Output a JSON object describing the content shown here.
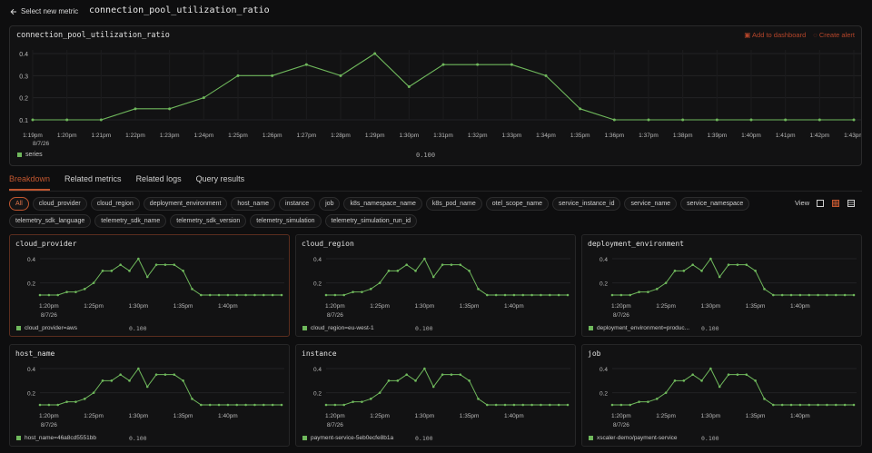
{
  "header": {
    "back_label": "Select new metric",
    "metric_name": "connection_pool_utilization_ratio"
  },
  "main_panel": {
    "title": "connection_pool_utilization_ratio",
    "add_to_dashboard": "Add to dashboard",
    "create_alert": "Create alert",
    "legend_label": "series",
    "legend_value": "0.100"
  },
  "tabs": [
    "Breakdown",
    "Related metrics",
    "Related logs",
    "Query results"
  ],
  "chips": [
    "All",
    "cloud_provider",
    "cloud_region",
    "deployment_environment",
    "host_name",
    "instance",
    "job",
    "k8s_namespace_name",
    "k8s_pod_name",
    "otel_scope_name",
    "service_instance_id",
    "service_name",
    "service_namespace",
    "telemetry_sdk_language",
    "telemetry_sdk_name",
    "telemetry_sdk_version",
    "telemetry_simulation",
    "telemetry_simulation_run_id"
  ],
  "view_label": "View",
  "colors": {
    "accent": "#c0562f",
    "series": "#6fb85c"
  },
  "cards": [
    {
      "title": "cloud_provider",
      "legend": "cloud_provider=aws",
      "value": "0.100"
    },
    {
      "title": "cloud_region",
      "legend": "cloud_region=eu-west-1",
      "value": "0.100"
    },
    {
      "title": "deployment_environment",
      "legend": "deployment_environment=produc...",
      "value": "0.100"
    },
    {
      "title": "host_name",
      "legend": "host_name=46a8cd5551bb",
      "value": "0.100"
    },
    {
      "title": "instance",
      "legend": "payment-service-5eb0ecfe8b1a",
      "value": "0.100"
    },
    {
      "title": "job",
      "legend": "xscaler-demo/payment-service",
      "value": "0.100"
    }
  ],
  "chart_data": [
    {
      "type": "line",
      "title": "connection_pool_utilization_ratio",
      "x": [
        "1:19pm",
        "1:20pm",
        "1:21pm",
        "1:22pm",
        "1:23pm",
        "1:24pm",
        "1:25pm",
        "1:26pm",
        "1:27pm",
        "1:28pm",
        "1:29pm",
        "1:30pm",
        "1:31pm",
        "1:32pm",
        "1:33pm",
        "1:34pm",
        "1:35pm",
        "1:36pm",
        "1:37pm",
        "1:38pm",
        "1:39pm",
        "1:40pm",
        "1:41pm",
        "1:42pm",
        "1:43pm"
      ],
      "x_date": "8/7/26",
      "series": [
        {
          "name": "series",
          "values": [
            0.1,
            0.1,
            0.1,
            0.15,
            0.15,
            0.2,
            0.3,
            0.3,
            0.35,
            0.3,
            0.4,
            0.25,
            0.35,
            0.35,
            0.35,
            0.3,
            0.15,
            0.1,
            0.1,
            0.1,
            0.1,
            0.1,
            0.1,
            0.1,
            0.1
          ]
        }
      ],
      "yticks": [
        "0.4",
        "0.3",
        "0.2",
        "0.1"
      ],
      "ylim": [
        0.1,
        0.4
      ],
      "grid": true
    },
    {
      "type": "line",
      "title": "breakdown",
      "x_ticks": [
        "1:20pm",
        "1:25pm",
        "1:30pm",
        "1:35pm",
        "1:40pm"
      ],
      "x_date": "8/7/26",
      "values": [
        0.1,
        0.1,
        0.1,
        0.125,
        0.125,
        0.15,
        0.2,
        0.3,
        0.3,
        0.35,
        0.3,
        0.4,
        0.25,
        0.35,
        0.35,
        0.35,
        0.3,
        0.15,
        0.1,
        0.1,
        0.1,
        0.1,
        0.1,
        0.1,
        0.1,
        0.1,
        0.1,
        0.1
      ],
      "yticks": [
        "0.4",
        "0.2"
      ],
      "ylim": [
        0.1,
        0.4
      ],
      "grid": true
    }
  ]
}
